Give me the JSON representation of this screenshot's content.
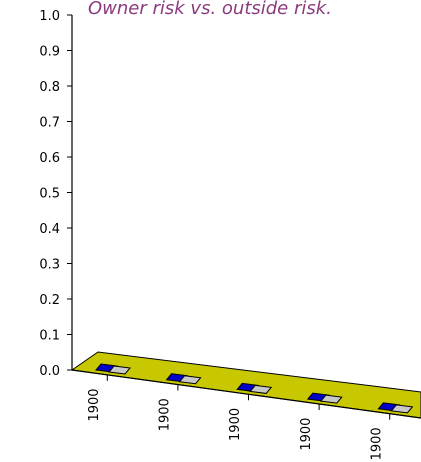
{
  "chart_data": {
    "type": "bar",
    "title": "Owner risk vs. outside risk.",
    "categories": [
      "1900",
      "1900",
      "1900",
      "1900",
      "1900"
    ],
    "series": [
      {
        "values": [
          0,
          0,
          0,
          0,
          0
        ],
        "color": "#0000cc"
      },
      {
        "values": [
          0,
          0,
          0,
          0,
          0
        ],
        "color": "#c8c8c8"
      }
    ],
    "ylim": [
      0,
      1
    ],
    "yticks": [
      "0.0",
      "0.1",
      "0.2",
      "0.3",
      "0.4",
      "0.5",
      "0.6",
      "0.7",
      "0.8",
      "0.9",
      "1.0"
    ],
    "floor_color": "#c8c800",
    "grid": false,
    "legend": "none"
  }
}
